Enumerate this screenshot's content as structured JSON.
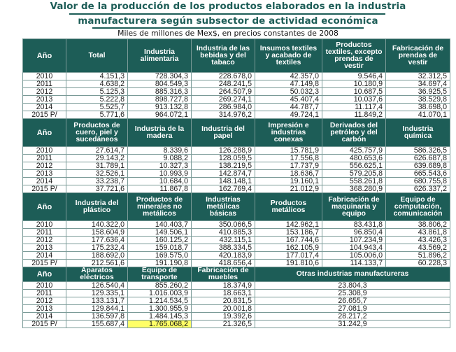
{
  "title_line1": "Valor de la producción de los productos elaborados en la industria",
  "title_line2": "manufacturera según subsector de actividad económica",
  "subtitle": "Miles de millones de Mex$, en precios constantes de 2008",
  "year_header": "Año",
  "years": [
    "2010",
    "2011",
    "2012",
    "2013",
    "2014",
    "2015 P/"
  ],
  "block1": {
    "headers": [
      "Total",
      "Industria alimentaria",
      "Industria de las bebidas y del tabaco",
      "Insumos textiles y acabado de textiles",
      "Productos textiles, excepto prendas de vestir",
      "Fabricación de prendas de vestir"
    ],
    "rows": [
      [
        "4.151,3",
        "728.304,3",
        "228.678,0",
        "42.357,0",
        "9.546,4",
        "32.312,5"
      ],
      [
        "4.638,2",
        "804.549,3",
        "248.241,5",
        "47.149,8",
        "10.180,9",
        "34.697,4"
      ],
      [
        "5.125,3",
        "885.316,3",
        "264.507,9",
        "50.032,3",
        "10.687,5",
        "36.925,5"
      ],
      [
        "5.222,8",
        "898.727,8",
        "269.274,1",
        "45.407,4",
        "10.037,6",
        "38.529,8"
      ],
      [
        "5.525,7",
        "913.132,8",
        "286.984,0",
        "44.787,7",
        "11.117,4",
        "38.698,0"
      ],
      [
        "5.771,6",
        "964.072,1",
        "314.976,2",
        "49.724,1",
        "11.849,2",
        "41.070,1"
      ]
    ]
  },
  "block2": {
    "headers": [
      "Productos de cuero, piel y sucedáneos",
      "Industria de la madera",
      "Industria del papel",
      "Impresión e industrias conexas",
      "Derivados del petróleo y del carbón",
      "Industria química"
    ],
    "rows": [
      [
        "27.614,7",
        "8.339,6",
        "126.288,9",
        "15.781,9",
        "425.757,9",
        "586.326,5"
      ],
      [
        "29.143,2",
        "9.088,2",
        "128.059,5",
        "17.556,8",
        "480.653,6",
        "626.687,8"
      ],
      [
        "31.789,1",
        "10.327,3",
        "138.219,5",
        "17.737,9",
        "556.625,1",
        "639.689,8"
      ],
      [
        "32.526,1",
        "10.993,9",
        "142.874,7",
        "18.636,7",
        "579.205,8",
        "665.543,6"
      ],
      [
        "33.238,7",
        "10.684,0",
        "148.148,1",
        "19.160,1",
        "558.261,8",
        "680.755,8"
      ],
      [
        "37.721,6",
        "11.867,8",
        "162.769,4",
        "21.012,9",
        "368.280,9",
        "626.337,2"
      ]
    ]
  },
  "block3": {
    "headers": [
      "Industria del plástico",
      "Productos de minerales no metálicos",
      "Industrias metálicas básicas",
      "Productos metálicos",
      "Fabricación de maquinaria y equipo",
      "Equipo de computación, comunicación"
    ],
    "rows": [
      [
        "140.322,0",
        "140.403,7",
        "350.066,5",
        "142.962,1",
        "83.431,8",
        "38.806,2"
      ],
      [
        "158.604,9",
        "149.506,1",
        "410.885,3",
        "153.186,7",
        "96.850,4",
        "43.861,8"
      ],
      [
        "177.636,4",
        "160.125,2",
        "432.115,1",
        "167.744,6",
        "107.234,9",
        "43.426,3"
      ],
      [
        "175.232,4",
        "159.018,7",
        "388.334,5",
        "162.105,9",
        "104.943,4",
        "43.569,2"
      ],
      [
        "188.692,0",
        "169.575,0",
        "420.183,9",
        "177.017,4",
        "105.006,0",
        "51.896,2"
      ],
      [
        "212.561,6",
        "191.190,8",
        "418.656,4",
        "191.810,6",
        "114.133,7",
        "60.228,3"
      ]
    ]
  },
  "block4": {
    "headers": [
      "Aparatos eléctricos",
      "Equipo de transporte",
      "Fabricación de muebles",
      "Otras industrias manufactureras"
    ],
    "rows": [
      [
        "126.540,4",
        "855.260,2",
        "18.374,9",
        "23.804,3"
      ],
      [
        "129.335,1",
        "1.016.003,9",
        "18.663,1",
        "25.308,9"
      ],
      [
        "133.131,7",
        "1.214.534,5",
        "20.831,5",
        "26.655,7"
      ],
      [
        "129.844,1",
        "1.300.955,9",
        "20.001,8",
        "27.081,9"
      ],
      [
        "136.597,8",
        "1.484.145,3",
        "19.392,6",
        "28.217,2"
      ],
      [
        "155.687,4",
        "1.765.068,2",
        "21.326,5",
        "31.242,9"
      ]
    ]
  },
  "colors": {
    "header_bg": "#1d5d57",
    "title": "#1d5d57",
    "highlight": "#ffff66"
  }
}
